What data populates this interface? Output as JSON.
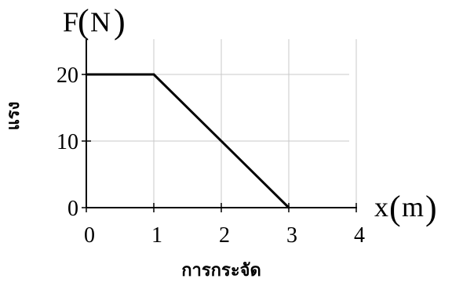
{
  "chart_data": {
    "type": "line",
    "x": [
      0,
      1,
      3
    ],
    "y": [
      20,
      20,
      0
    ],
    "xlim": [
      0,
      4
    ],
    "ylim": [
      0,
      25
    ],
    "x_ticks": [
      "0",
      "1",
      "2",
      "3",
      "4"
    ],
    "y_ticks": [
      "0",
      "10",
      "20"
    ],
    "x_tick_values": [
      0,
      1,
      2,
      3,
      4
    ],
    "y_tick_values": [
      0,
      10,
      20
    ],
    "grid": true,
    "y_axis_var": {
      "symbol": "F",
      "open": "(",
      "unit": "N",
      "close": ")"
    },
    "x_axis_var": {
      "symbol": "x",
      "open": "(",
      "unit": "m",
      "close": ")"
    },
    "ylabel": "แรง",
    "xlabel": "การกระจัด",
    "colors": {
      "line": "#000000",
      "grid": "#c8c8c8",
      "axis": "#000000"
    }
  }
}
